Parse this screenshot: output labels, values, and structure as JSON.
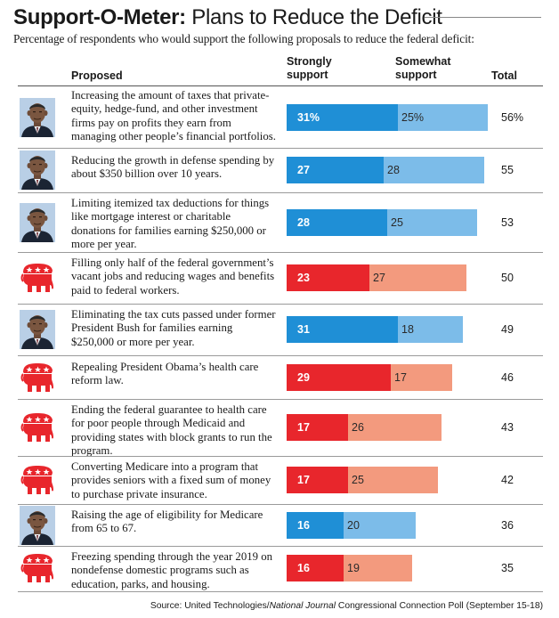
{
  "title_bold": "Support-O-Meter:",
  "title_light": "Plans to Reduce the Deficit",
  "subtitle": "Percentage of respondents who would support the following proposals to reduce the federal deficit:",
  "headers": {
    "proposed": "Proposed",
    "strongly": "Strongly support",
    "somewhat": "Somewhat support",
    "total": "Total"
  },
  "colors": {
    "dem_strong": "#1f8fd6",
    "dem_some": "#7cbce9",
    "rep_strong": "#e8262c",
    "rep_some": "#f39a7e"
  },
  "source_prefix": "Source: United Technologies/",
  "source_italic": "National Journal",
  "source_suffix": " Congressional Connection Poll (September 15-18)",
  "chart_data": {
    "type": "bar",
    "stacked": true,
    "orientation": "horizontal",
    "series_names": [
      "Strongly support",
      "Somewhat support"
    ],
    "rows": [
      {
        "proposal": "Increasing the amount of taxes that private-equity, hedge-fund, and other investment firms pay on profits they earn from managing other people’s financial portfolios.",
        "icon": "obama-portrait-icon",
        "party": "dem",
        "strongly": 31,
        "somewhat": 25,
        "total": 56,
        "strong_label": "31%",
        "some_label": "25%",
        "total_label": "56%"
      },
      {
        "proposal": "Reducing the growth in defense spending by about $350 billion over 10 years.",
        "icon": "obama-portrait-icon",
        "party": "dem",
        "strongly": 27,
        "somewhat": 28,
        "total": 55,
        "strong_label": "27",
        "some_label": "28",
        "total_label": "55"
      },
      {
        "proposal": "Limiting itemized tax deductions for things like mortgage interest or charitable donations for families earning $250,000 or more per year.",
        "icon": "obama-portrait-icon",
        "party": "dem",
        "strongly": 28,
        "somewhat": 25,
        "total": 53,
        "strong_label": "28",
        "some_label": "25",
        "total_label": "53"
      },
      {
        "proposal": "Filling only half of the federal government’s vacant jobs and reducing wages and benefits paid to federal workers.",
        "icon": "gop-elephant-icon",
        "party": "rep",
        "strongly": 23,
        "somewhat": 27,
        "total": 50,
        "strong_label": "23",
        "some_label": "27",
        "total_label": "50"
      },
      {
        "proposal": "Eliminating the tax cuts passed under former President Bush for families earning $250,000 or more per year.",
        "icon": "obama-portrait-icon",
        "party": "dem",
        "strongly": 31,
        "somewhat": 18,
        "total": 49,
        "strong_label": "31",
        "some_label": "18",
        "total_label": "49"
      },
      {
        "proposal": "Repealing President Obama’s health care reform law.",
        "icon": "gop-elephant-icon",
        "party": "rep",
        "strongly": 29,
        "somewhat": 17,
        "total": 46,
        "strong_label": "29",
        "some_label": "17",
        "total_label": "46"
      },
      {
        "proposal": "Ending the federal guarantee to health care for poor people through Medicaid and providing states with block grants to run the program.",
        "icon": "gop-elephant-icon",
        "party": "rep",
        "strongly": 17,
        "somewhat": 26,
        "total": 43,
        "strong_label": "17",
        "some_label": "26",
        "total_label": "43"
      },
      {
        "proposal": "Converting Medicare into a program that provides seniors with a fixed sum of money to purchase private insurance.",
        "icon": "gop-elephant-icon",
        "party": "rep",
        "strongly": 17,
        "somewhat": 25,
        "total": 42,
        "strong_label": "17",
        "some_label": "25",
        "total_label": "42"
      },
      {
        "proposal": "Raising the age of eligibility for Medicare from 65 to 67.",
        "icon": "obama-portrait-icon",
        "party": "dem",
        "strongly": 16,
        "somewhat": 20,
        "total": 36,
        "strong_label": "16",
        "some_label": "20",
        "total_label": "36"
      },
      {
        "proposal": "Freezing spending through the year 2019 on nondefense domestic programs such as education, parks, and housing.",
        "icon": "gop-elephant-icon",
        "party": "rep",
        "strongly": 16,
        "somewhat": 19,
        "total": 35,
        "strong_label": "16",
        "some_label": "19",
        "total_label": "35"
      }
    ]
  }
}
